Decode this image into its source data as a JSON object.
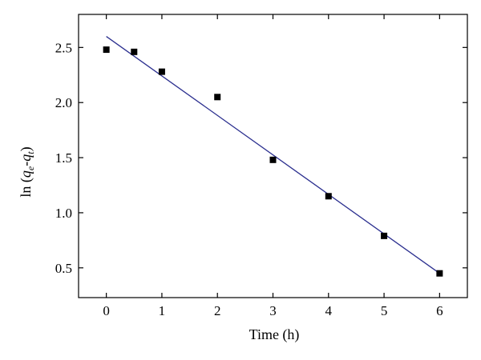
{
  "chart_data": {
    "type": "scatter",
    "xlabel": "Time (h)",
    "ylabel": {
      "prefix": "ln (",
      "q1": "q",
      "sub1": "e",
      "dash": "-",
      "q2": "q",
      "sub2": "t",
      "suffix": ")"
    },
    "xlim": [
      -0.5,
      6.5
    ],
    "ylim": [
      0.23,
      2.8
    ],
    "x_ticks": [
      0,
      1,
      2,
      3,
      4,
      5,
      6
    ],
    "x_tick_labels": [
      "0",
      "1",
      "2",
      "3",
      "4",
      "5",
      "6"
    ],
    "y_ticks": [
      0.5,
      1.0,
      1.5,
      2.0,
      2.5
    ],
    "y_tick_labels": [
      "0.5",
      "1.0",
      "1.5",
      "2.0",
      "2.5"
    ],
    "grid": false,
    "series": [
      {
        "kind": "points",
        "marker": "square",
        "color": "#000000",
        "x": [
          0,
          0.5,
          1,
          2,
          3,
          4,
          5,
          6
        ],
        "y": [
          2.48,
          2.46,
          2.28,
          2.05,
          1.48,
          1.15,
          0.79,
          0.45
        ]
      },
      {
        "kind": "fit-line",
        "color": "#2b2f8f",
        "x": [
          0,
          6
        ],
        "y": [
          2.6,
          0.45
        ]
      }
    ]
  }
}
